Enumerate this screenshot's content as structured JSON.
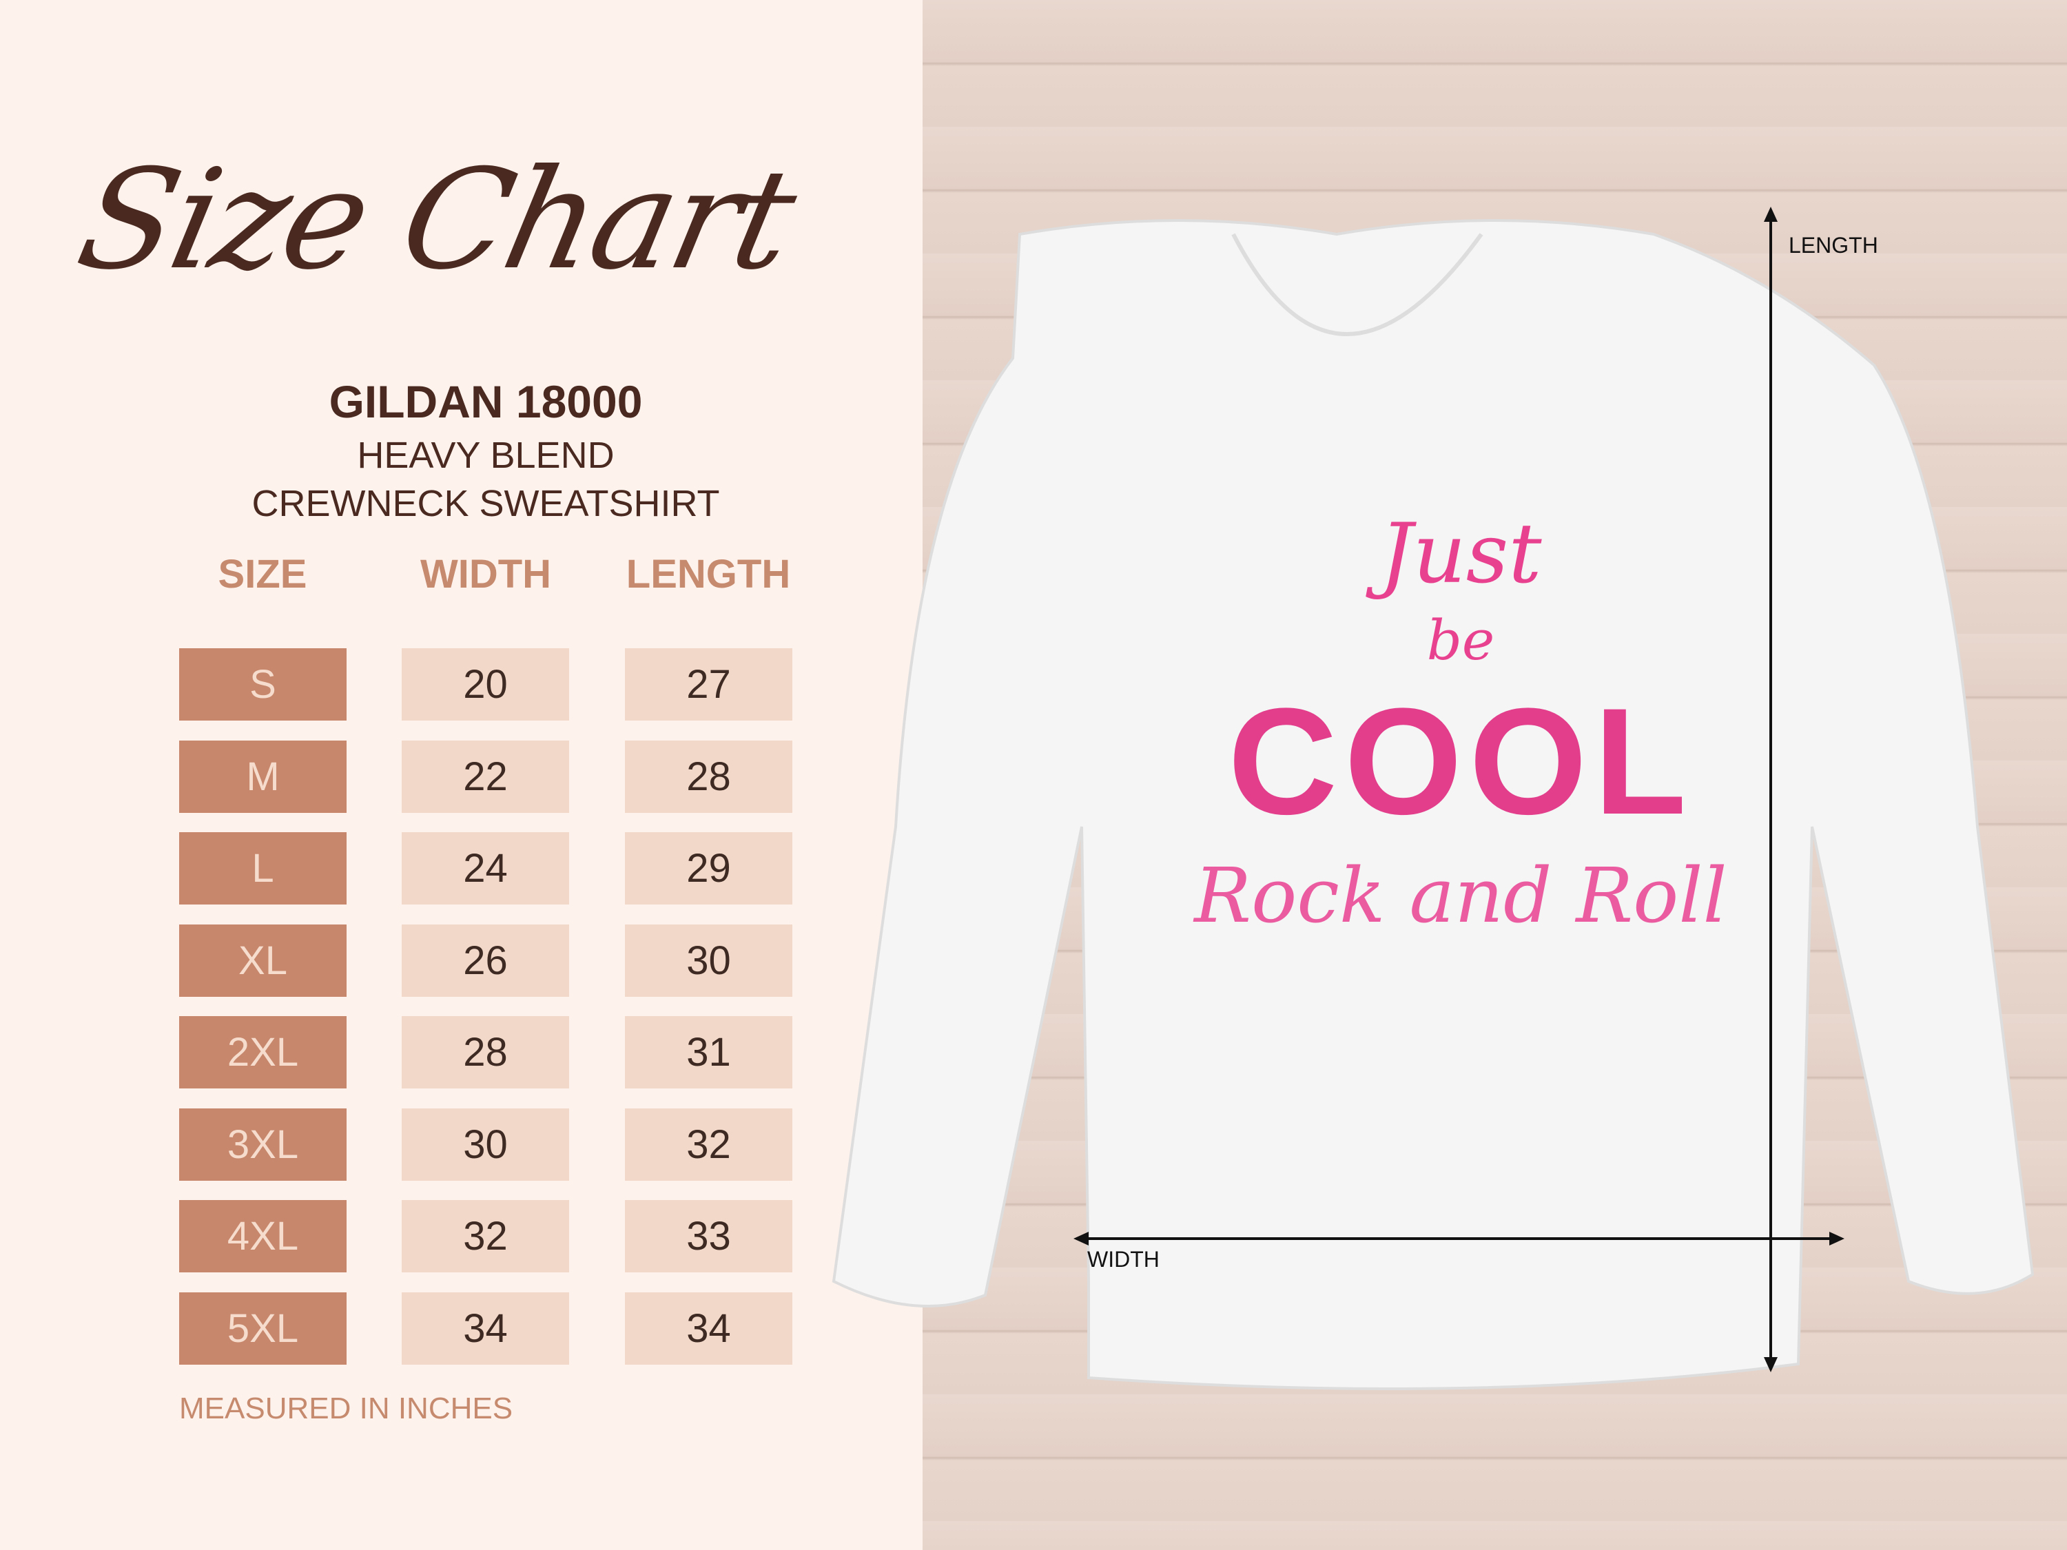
{
  "title": "Size Chart",
  "product": {
    "brand": "GILDAN 18000",
    "line1": "HEAVY BLEND",
    "line2": "CREWNECK SWEATSHIRT"
  },
  "table": {
    "headers": [
      "SIZE",
      "WIDTH",
      "LENGTH"
    ],
    "rows": [
      [
        "S",
        "20",
        "27"
      ],
      [
        "M",
        "22",
        "28"
      ],
      [
        "L",
        "24",
        "29"
      ],
      [
        "XL",
        "26",
        "30"
      ],
      [
        "2XL",
        "28",
        "31"
      ],
      [
        "3XL",
        "30",
        "32"
      ],
      [
        "4XL",
        "32",
        "33"
      ],
      [
        "5XL",
        "34",
        "34"
      ]
    ]
  },
  "note": "MEASURED IN INCHES",
  "measure": {
    "length": "LENGTH",
    "width": "WIDTH"
  },
  "artwork": {
    "line1": "Just",
    "line2": "be",
    "line3": "COOL",
    "line4": "Rock and Roll"
  },
  "colors": {
    "size_cell": "#c7876c",
    "value_cell": "#f2d8c8",
    "heading": "#c68a6e",
    "text": "#4a2a20",
    "art_pink": "#e8418f"
  }
}
